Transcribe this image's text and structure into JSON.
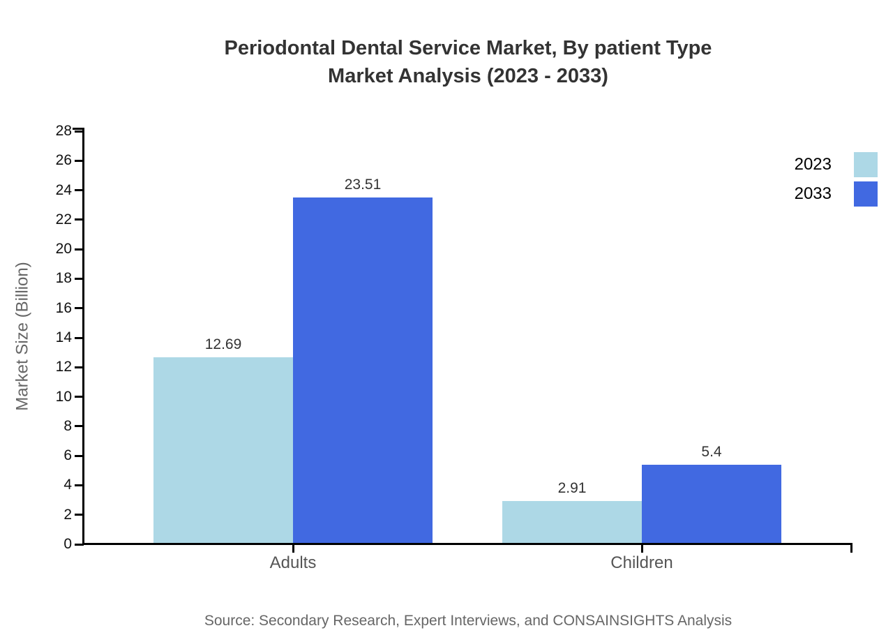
{
  "title": {
    "line1": "Periodontal Dental Service Market, By patient Type",
    "line2": "Market Analysis (2023 - 2033)"
  },
  "chart_data": {
    "type": "bar",
    "categories": [
      "Adults",
      "Children"
    ],
    "series": [
      {
        "name": "2023",
        "color": "#ADD8E6",
        "values": [
          12.69,
          2.91
        ]
      },
      {
        "name": "2033",
        "color": "#4169E1",
        "values": [
          23.51,
          5.4
        ]
      }
    ],
    "title": "Periodontal Dental Service Market, By patient Type Market Analysis (2023 - 2033)",
    "xlabel": "",
    "ylabel": "Market Size (Billion)",
    "ylim": [
      0,
      28
    ],
    "ytick_step": 2,
    "grid": false,
    "legend_position": "right",
    "bar_value_labels": [
      "12.69",
      "23.51",
      "2.91",
      "5.4"
    ]
  },
  "source": "Source: Secondary Research, Expert Interviews, and CONSAINSIGHTS Analysis",
  "colors": {
    "axis": "#000000",
    "title_text": "#333333",
    "tick_text": "#111111",
    "category_text": "#555555",
    "value_text": "#333333",
    "muted_text": "#666666",
    "series_2023": "#ADD8E6",
    "series_2033": "#4169E1"
  }
}
